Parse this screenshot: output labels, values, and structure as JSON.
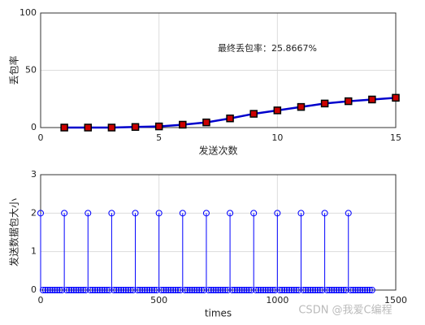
{
  "chart_data": [
    {
      "type": "line",
      "annotation": "最终丢包率：25.8667%",
      "xlabel": "发送次数",
      "ylabel": "丢包率",
      "x": [
        1,
        2,
        3,
        4,
        5,
        6,
        7,
        8,
        9,
        10,
        11,
        12,
        13,
        14,
        15
      ],
      "series": [
        {
          "color": "#0000cc",
          "marker_color": "#cc0000",
          "values": [
            0,
            0,
            0,
            0.5,
            1,
            2.5,
            4.5,
            8,
            12,
            15,
            18,
            21,
            23,
            24.5,
            26
          ]
        }
      ],
      "xlim": [
        0,
        15
      ],
      "xticks": [
        0,
        5,
        10,
        15
      ],
      "ylim": [
        0,
        100
      ],
      "yticks": [
        0,
        50,
        100
      ],
      "grid": true
    },
    {
      "type": "stem",
      "xlabel": "times",
      "ylabel": "发送数据包大小",
      "color": "#0000ff",
      "x": [
        0,
        10,
        20,
        30,
        40,
        50,
        60,
        70,
        80,
        90,
        100,
        110,
        120,
        130,
        140,
        150,
        160,
        170,
        180,
        190,
        200,
        210,
        220,
        230,
        240,
        250,
        260,
        270,
        280,
        290,
        300,
        310,
        320,
        330,
        340,
        350,
        360,
        370,
        380,
        390,
        400,
        410,
        420,
        430,
        440,
        450,
        460,
        470,
        480,
        490,
        500,
        510,
        520,
        530,
        540,
        550,
        560,
        570,
        580,
        590,
        600,
        610,
        620,
        630,
        640,
        650,
        660,
        670,
        680,
        690,
        700,
        710,
        720,
        730,
        740,
        750,
        760,
        770,
        780,
        790,
        800,
        810,
        820,
        830,
        840,
        850,
        860,
        870,
        880,
        890,
        900,
        910,
        920,
        930,
        940,
        950,
        960,
        970,
        980,
        990,
        1000,
        1010,
        1020,
        1030,
        1040,
        1050,
        1060,
        1070,
        1080,
        1090,
        1100,
        1110,
        1120,
        1130,
        1140,
        1150,
        1160,
        1170,
        1180,
        1190,
        1200,
        1210,
        1220,
        1230,
        1240,
        1250,
        1260,
        1270,
        1280,
        1290,
        1300,
        1310,
        1320,
        1330,
        1340,
        1350,
        1360,
        1370,
        1380,
        1390,
        1400
      ],
      "values": [
        2,
        0,
        0,
        0,
        0,
        0,
        0,
        0,
        0,
        0,
        2,
        0,
        0,
        0,
        0,
        0,
        0,
        0,
        0,
        0,
        2,
        0,
        0,
        0,
        0,
        0,
        0,
        0,
        0,
        0,
        2,
        0,
        0,
        0,
        0,
        0,
        0,
        0,
        0,
        0,
        2,
        0,
        0,
        0,
        0,
        0,
        0,
        0,
        0,
        0,
        2,
        0,
        0,
        0,
        0,
        0,
        0,
        0,
        0,
        0,
        2,
        0,
        0,
        0,
        0,
        0,
        0,
        0,
        0,
        0,
        2,
        0,
        0,
        0,
        0,
        0,
        0,
        0,
        0,
        0,
        2,
        0,
        0,
        0,
        0,
        0,
        0,
        0,
        0,
        0,
        2,
        0,
        0,
        0,
        0,
        0,
        0,
        0,
        0,
        0,
        2,
        0,
        0,
        0,
        0,
        0,
        0,
        0,
        0,
        0,
        2,
        0,
        0,
        0,
        0,
        0,
        0,
        0,
        0,
        0,
        2,
        0,
        0,
        0,
        0,
        0,
        0,
        0,
        0,
        0,
        2,
        0,
        0,
        0,
        0,
        0,
        0,
        0,
        0,
        0,
        0
      ],
      "xlim": [
        0,
        1500
      ],
      "xticks": [
        0,
        500,
        1000,
        1500
      ],
      "ylim": [
        0,
        3
      ],
      "yticks": [
        0,
        1,
        2,
        3
      ],
      "grid": true
    }
  ],
  "watermark": "CSDN @我爱C编程"
}
